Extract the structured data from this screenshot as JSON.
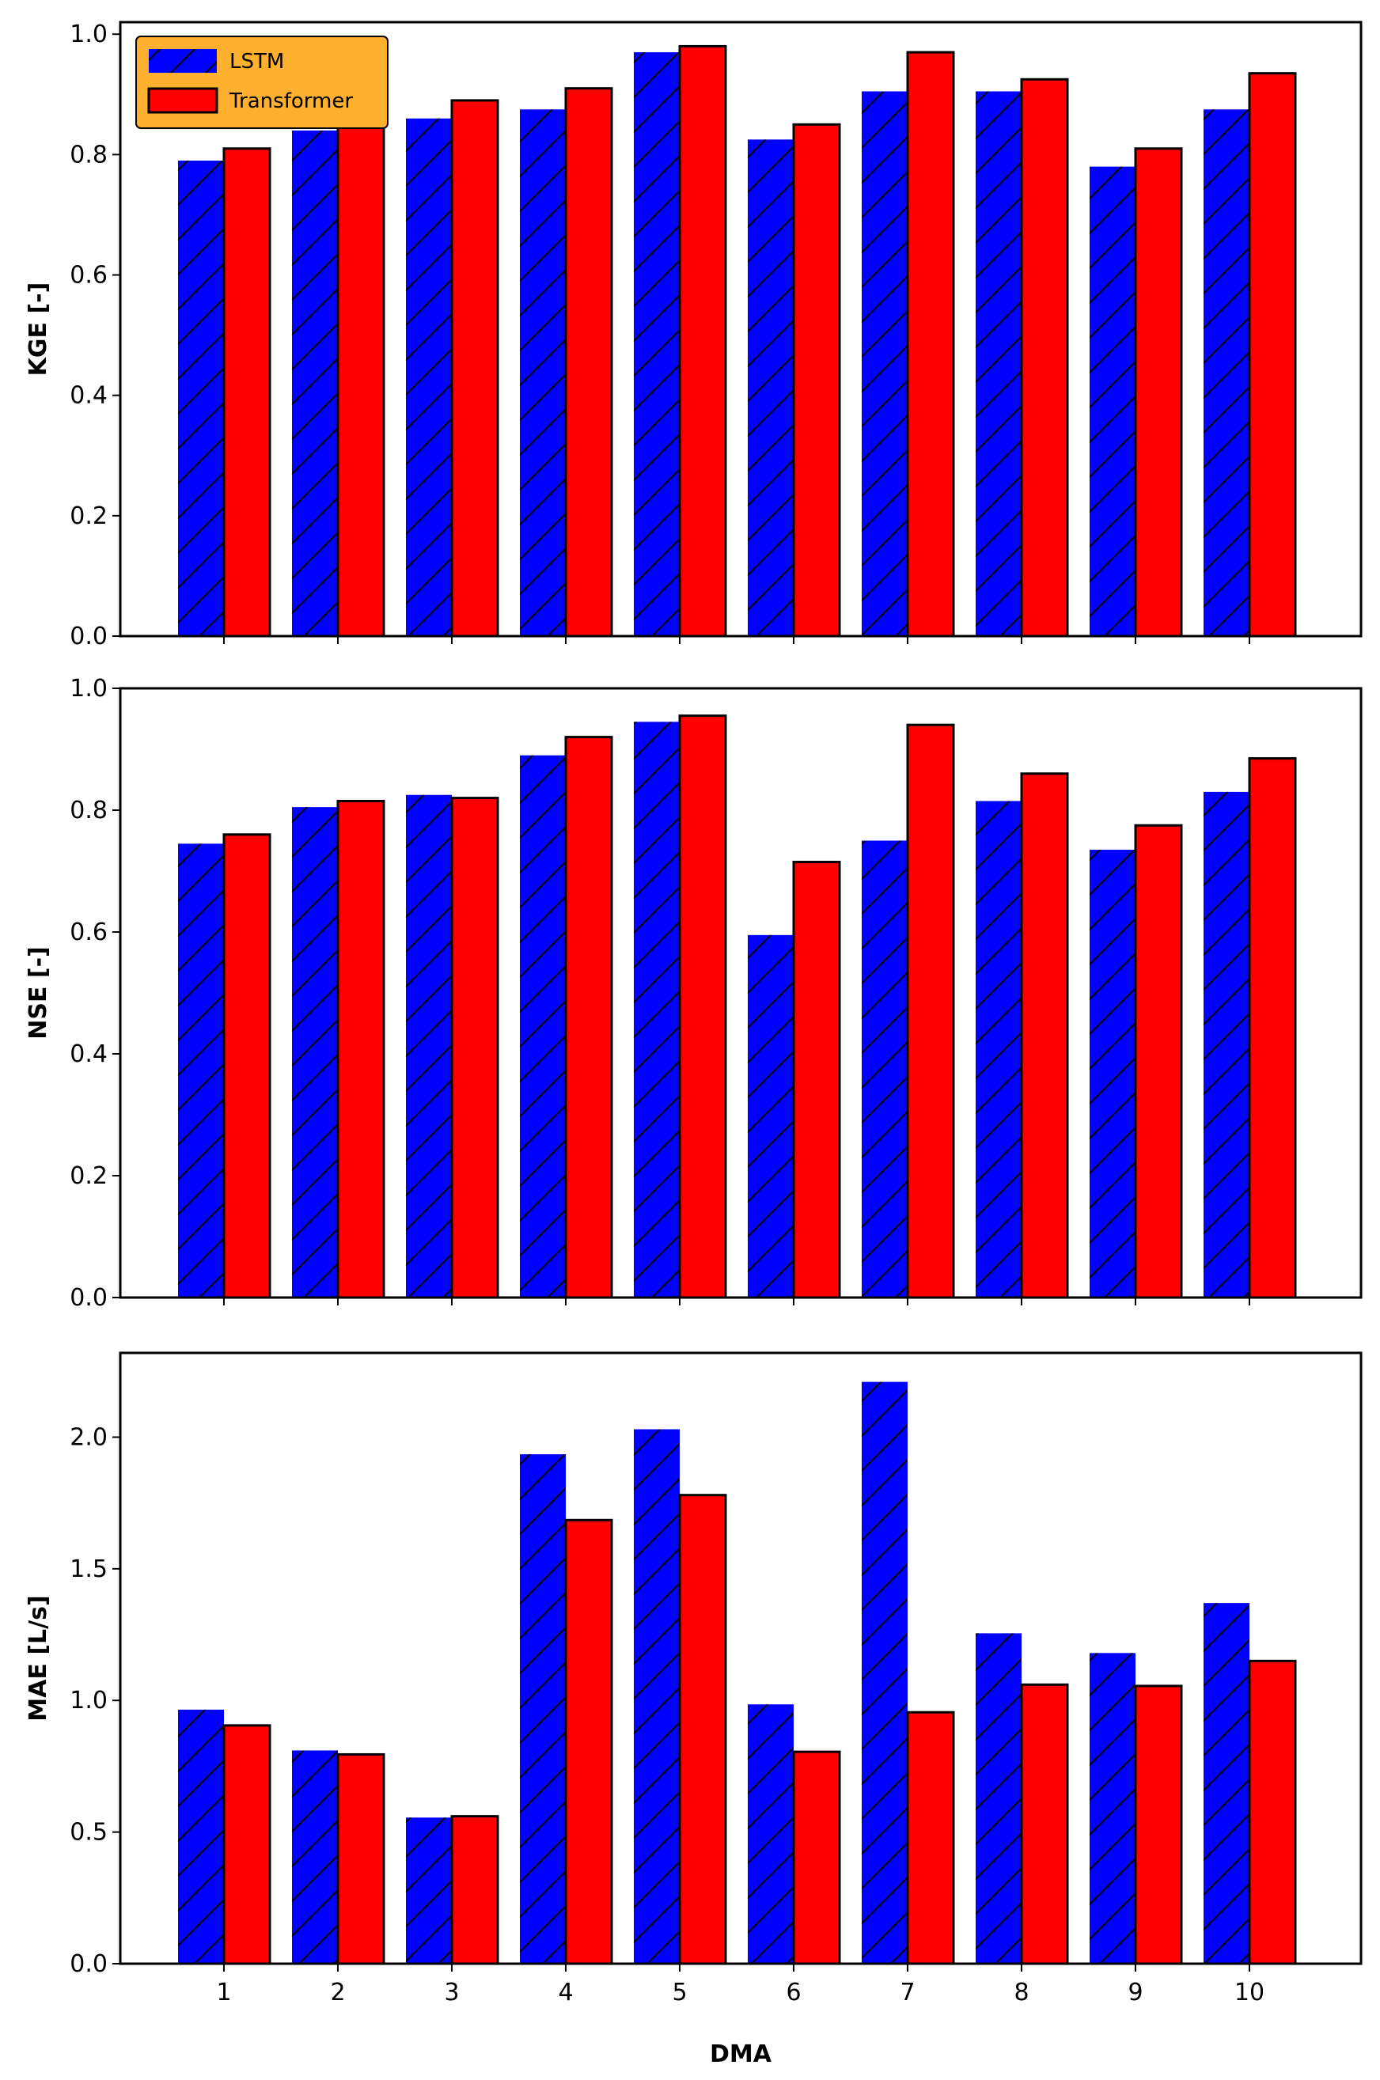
{
  "chart_data": [
    {
      "type": "bar",
      "id": "kge",
      "title": "",
      "xlabel": "",
      "ylabel": "KGE [-]",
      "ylim": [
        0,
        1.02
      ],
      "yticks": [
        0.0,
        0.2,
        0.4,
        0.6,
        0.8,
        1.0
      ],
      "ytick_labels": [
        "0.0",
        "0.2",
        "0.4",
        "0.6",
        "0.8",
        "1.0"
      ],
      "categories": [
        "1",
        "2",
        "3",
        "4",
        "5",
        "6",
        "7",
        "8",
        "9",
        "10"
      ],
      "show_xtick_labels": false,
      "grid": false,
      "legend_position": "top-left",
      "series": [
        {
          "name": "LSTM",
          "values": [
            0.79,
            0.84,
            0.86,
            0.875,
            0.97,
            0.825,
            0.905,
            0.905,
            0.78,
            0.875
          ]
        },
        {
          "name": "Transformer",
          "values": [
            0.81,
            0.86,
            0.89,
            0.91,
            0.98,
            0.85,
            0.97,
            0.925,
            0.81,
            0.935
          ]
        }
      ]
    },
    {
      "type": "bar",
      "id": "nse",
      "title": "",
      "xlabel": "",
      "ylabel": "NSE [-]",
      "ylim": [
        0,
        1.0
      ],
      "yticks": [
        0.0,
        0.2,
        0.4,
        0.6,
        0.8,
        1.0
      ],
      "ytick_labels": [
        "0.0",
        "0.2",
        "0.4",
        "0.6",
        "0.8",
        "1.0"
      ],
      "categories": [
        "1",
        "2",
        "3",
        "4",
        "5",
        "6",
        "7",
        "8",
        "9",
        "10"
      ],
      "show_xtick_labels": false,
      "grid": false,
      "series": [
        {
          "name": "LSTM",
          "values": [
            0.745,
            0.805,
            0.825,
            0.89,
            0.945,
            0.595,
            0.75,
            0.815,
            0.735,
            0.83
          ]
        },
        {
          "name": "Transformer",
          "values": [
            0.76,
            0.815,
            0.82,
            0.92,
            0.955,
            0.715,
            0.94,
            0.86,
            0.775,
            0.885
          ]
        }
      ]
    },
    {
      "type": "bar",
      "id": "mae",
      "title": "",
      "xlabel": "DMA",
      "ylabel": "MAE [L/s]",
      "ylim": [
        0,
        2.32
      ],
      "yticks": [
        0.0,
        0.5,
        1.0,
        1.5,
        2.0
      ],
      "ytick_labels": [
        "0.0",
        "0.5",
        "1.0",
        "1.5",
        "2.0"
      ],
      "categories": [
        "1",
        "2",
        "3",
        "4",
        "5",
        "6",
        "7",
        "8",
        "9",
        "10"
      ],
      "show_xtick_labels": true,
      "grid": false,
      "series": [
        {
          "name": "LSTM",
          "values": [
            0.965,
            0.81,
            0.555,
            1.935,
            2.03,
            0.985,
            2.21,
            1.255,
            1.18,
            1.37
          ]
        },
        {
          "name": "Transformer",
          "values": [
            0.905,
            0.795,
            0.56,
            1.685,
            1.78,
            0.805,
            0.955,
            1.06,
            1.055,
            1.15
          ]
        }
      ]
    }
  ],
  "colors": {
    "lstm": "#0000ff",
    "transformer": "#ff0000",
    "legend_background": "#ffb02e",
    "axis": "#000000"
  }
}
